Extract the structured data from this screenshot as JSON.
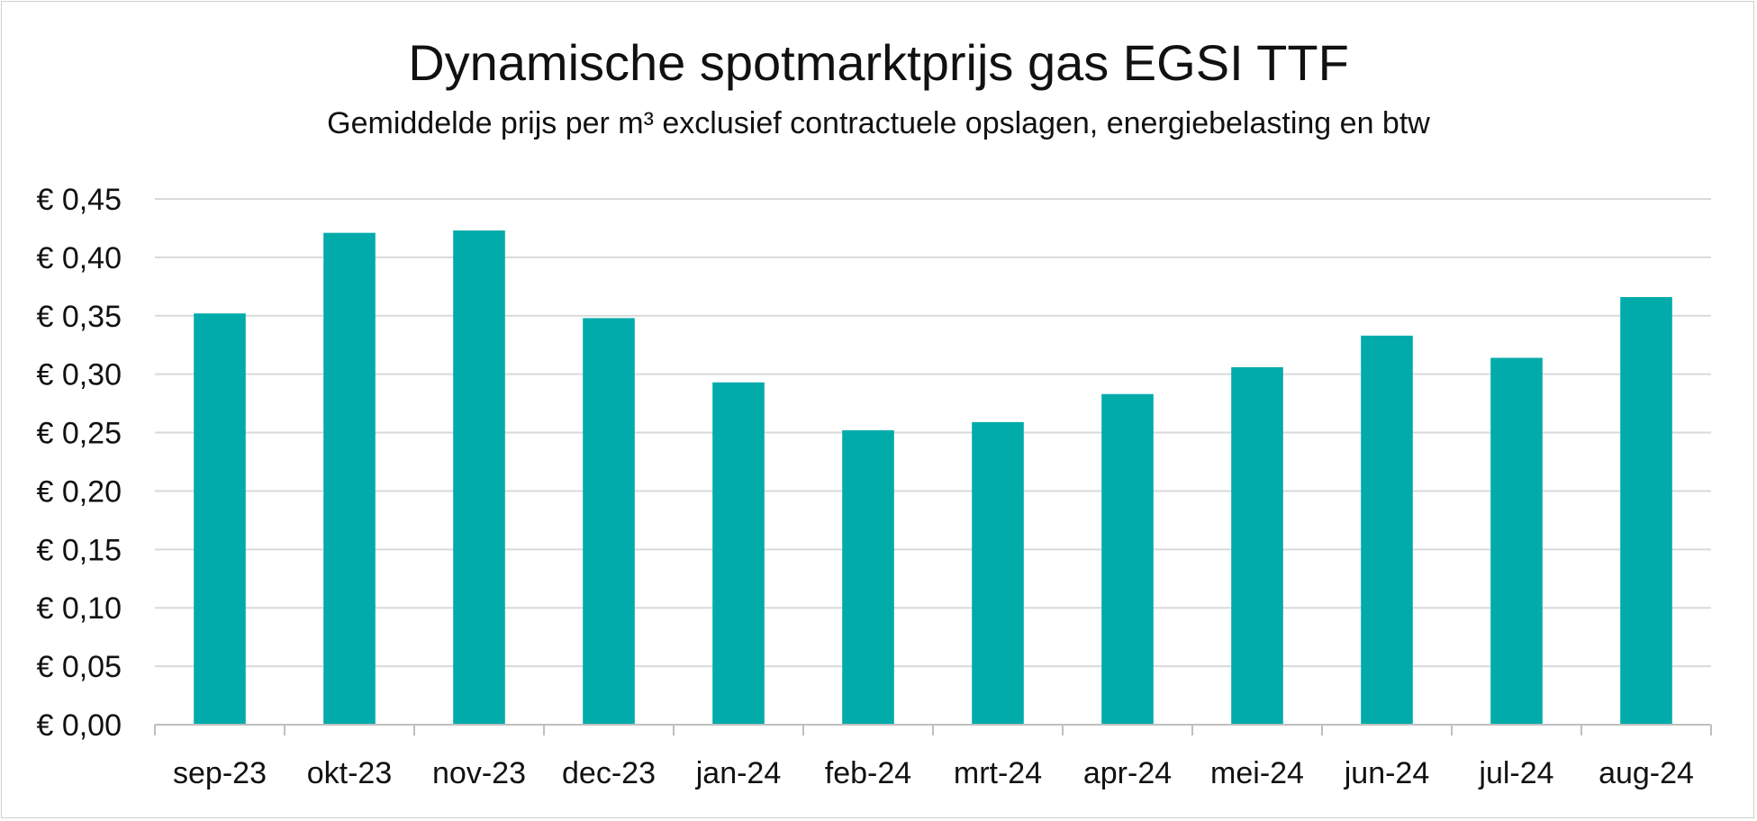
{
  "chart_data": {
    "type": "bar",
    "title": "Dynamische spotmarktprijs gas EGSI TTF",
    "subtitle": "Gemiddelde prijs per m³ exclusief contractuele opslagen, energiebelasting en btw",
    "xlabel": "",
    "ylabel": "",
    "categories": [
      "sep-23",
      "okt-23",
      "nov-23",
      "dec-23",
      "jan-24",
      "feb-24",
      "mrt-24",
      "apr-24",
      "mei-24",
      "jun-24",
      "jul-24",
      "aug-24"
    ],
    "values": [
      0.352,
      0.421,
      0.423,
      0.348,
      0.293,
      0.252,
      0.259,
      0.283,
      0.306,
      0.333,
      0.314,
      0.366
    ],
    "ylim": [
      0,
      0.45
    ],
    "yticks": [
      0.0,
      0.05,
      0.1,
      0.15,
      0.2,
      0.25,
      0.3,
      0.35,
      0.4,
      0.45
    ],
    "ytick_labels": [
      "€ 0,00",
      "€ 0,05",
      "€ 0,10",
      "€ 0,15",
      "€ 0,20",
      "€ 0,25",
      "€ 0,30",
      "€ 0,35",
      "€ 0,40",
      "€ 0,45"
    ],
    "grid": true,
    "legend": "none",
    "colors": {
      "bar": "#00ABAA",
      "grid": "#D9D9D9",
      "axis": "#BFBFBF"
    }
  }
}
